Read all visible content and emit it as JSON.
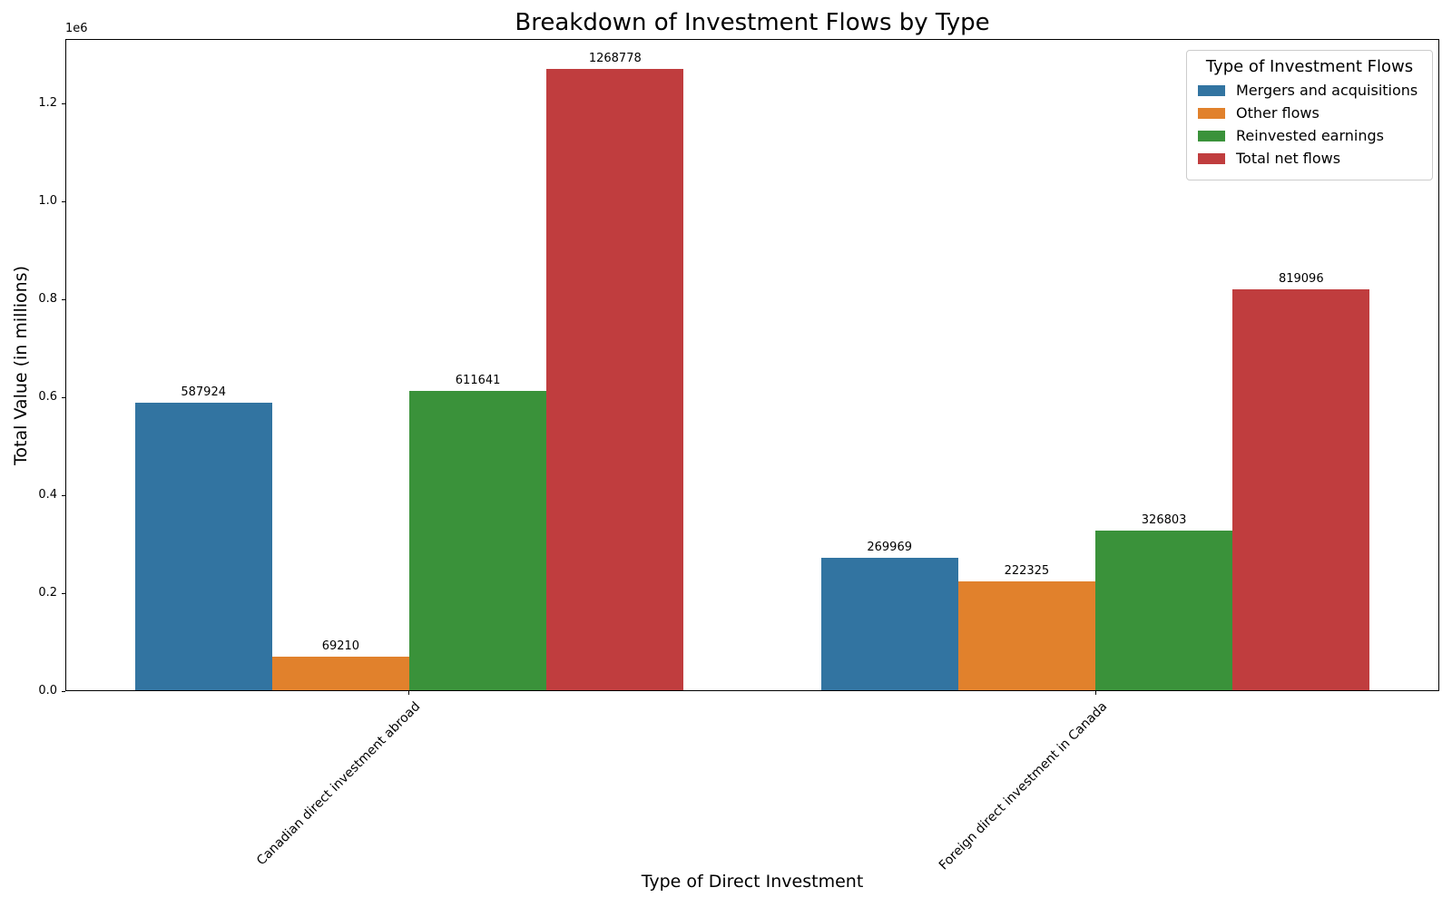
{
  "chart_data": {
    "type": "bar",
    "title": "Breakdown of Investment Flows by Type",
    "xlabel": "Type of Direct Investment",
    "ylabel": "Total Value (in millions)",
    "y_offset_label": "1e6",
    "categories": [
      "Canadian direct investment abroad",
      "Foreign direct investment in Canada"
    ],
    "series": [
      {
        "name": "Mergers and acquisitions",
        "color": "#3274a1",
        "values": [
          587924,
          269969
        ]
      },
      {
        "name": "Other flows",
        "color": "#e1812c",
        "values": [
          69210,
          222325
        ]
      },
      {
        "name": "Reinvested earnings",
        "color": "#3a923a",
        "values": [
          611641,
          326803
        ]
      },
      {
        "name": "Total net flows",
        "color": "#c03d3e",
        "values": [
          1268778,
          819096
        ]
      }
    ],
    "bar_value_labels_shown": true,
    "ylim": [
      0,
      1332217
    ],
    "yticks": [
      0,
      200000,
      400000,
      600000,
      800000,
      1000000,
      1200000
    ],
    "ytick_labels": [
      "0.0",
      "0.2",
      "0.4",
      "0.6",
      "0.8",
      "1.0",
      "1.2"
    ],
    "xtick_rotation_deg": 45,
    "grid": false,
    "legend": {
      "title": "Type of Investment Flows",
      "position": "upper right"
    }
  }
}
